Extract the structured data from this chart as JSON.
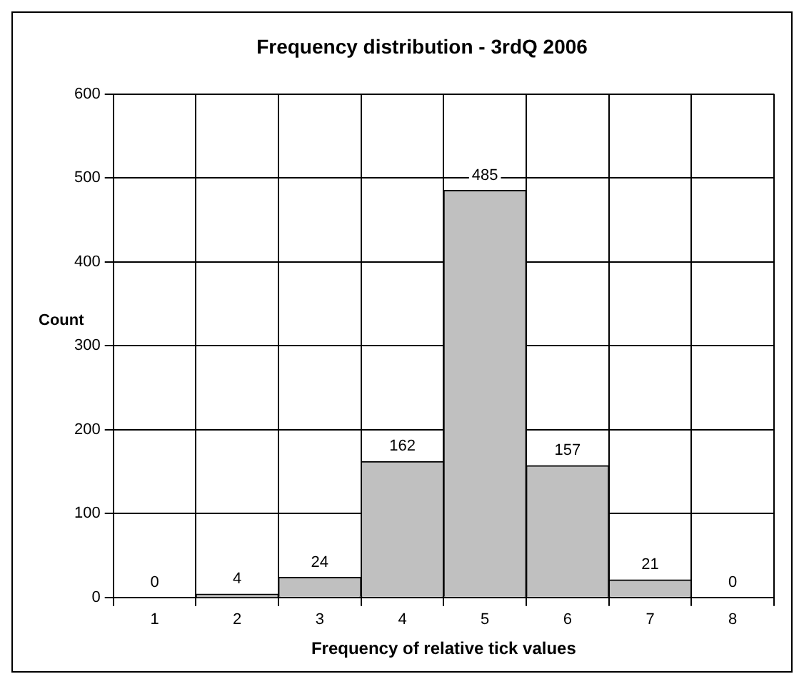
{
  "chart_data": {
    "type": "bar",
    "title": "Frequency distribution - 3rdQ 2006",
    "xlabel": "Frequency of relative tick values",
    "ylabel": "Count",
    "categories": [
      "1",
      "2",
      "3",
      "4",
      "5",
      "6",
      "7",
      "8"
    ],
    "values": [
      0,
      4,
      24,
      162,
      485,
      157,
      21,
      0
    ],
    "color": "#c0c0c0",
    "ylim": [
      0,
      600
    ],
    "yticks": [
      0,
      100,
      200,
      300,
      400,
      500,
      600
    ],
    "grid": true,
    "data_labels": true,
    "legend": false
  }
}
